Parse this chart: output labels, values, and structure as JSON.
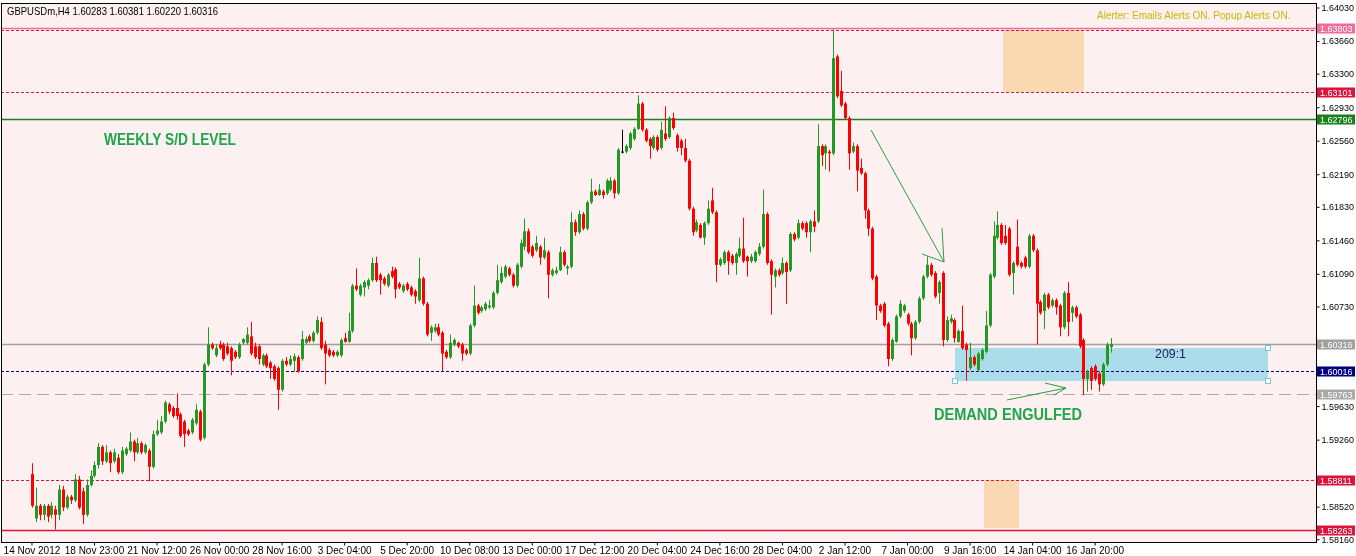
{
  "chart_data": {
    "type": "candlestick",
    "title": "GBPUSDm,H4 1.60283 1.60381 1.60220 1.60316",
    "categories": [
      "14 Nov 2012",
      null,
      null,
      null,
      null,
      null,
      null,
      null,
      null,
      null,
      null,
      null,
      null,
      null,
      null,
      null,
      "18 Nov 23:00",
      null,
      null,
      null,
      null,
      null,
      null,
      null,
      null,
      null,
      null,
      null,
      null,
      null,
      null,
      null,
      "21 Nov 12:00",
      null,
      null,
      null,
      null,
      null,
      null,
      null,
      null,
      null,
      null,
      null,
      null,
      null,
      null,
      null,
      "26 Nov 00:00",
      null,
      null,
      null,
      null,
      null,
      null,
      null,
      null,
      null,
      null,
      null,
      null,
      null,
      null,
      null,
      "28 Nov 16:00",
      null,
      null,
      null,
      null,
      null,
      null,
      null,
      null,
      null,
      null,
      null,
      null,
      null,
      null,
      null,
      "3 Dec 04:00",
      null,
      null,
      null,
      null,
      null,
      null,
      null,
      null,
      null,
      null,
      null,
      null,
      null,
      null,
      null,
      "5 Dec 20:00",
      null,
      null,
      null,
      null,
      null,
      null,
      null,
      null,
      null,
      null,
      null,
      null,
      null,
      null,
      null,
      "10 Dec 08:00",
      null,
      null,
      null,
      null,
      null,
      null,
      null,
      null,
      null,
      null,
      null,
      null,
      null,
      null,
      null,
      "13 Dec 00:00",
      null,
      null,
      null,
      null,
      null,
      null,
      null,
      null,
      null,
      null,
      null,
      null,
      null,
      null,
      null,
      "17 Dec 12:00",
      null,
      null,
      null,
      null,
      null,
      null,
      null,
      null,
      null,
      null,
      null,
      null,
      null,
      null,
      null,
      "20 Dec 04:00",
      null,
      null,
      null,
      null,
      null,
      null,
      null,
      null,
      null,
      null,
      null,
      null,
      null,
      null,
      null,
      "24 Dec 16:00",
      null,
      null,
      null,
      null,
      null,
      null,
      null,
      null,
      null,
      null,
      null,
      null,
      null,
      null,
      null,
      "28 Dec 04:00",
      null,
      null,
      null,
      null,
      null,
      null,
      null,
      null,
      null,
      null,
      null,
      null,
      null,
      null,
      null,
      "2 Jan 12:00",
      null,
      null,
      null,
      null,
      null,
      null,
      null,
      null,
      null,
      null,
      null,
      null,
      null,
      null,
      null,
      "7 Jan 00:00",
      null,
      null,
      null,
      null,
      null,
      null,
      null,
      null,
      null,
      null,
      null,
      null,
      null,
      null,
      null,
      "9 Jan 16:00",
      null,
      null,
      null,
      null,
      null,
      null,
      null,
      null,
      null,
      null,
      null,
      null,
      null,
      null,
      null,
      "14 Jan 04:00",
      null,
      null,
      null,
      null,
      null,
      null,
      null,
      null,
      null,
      null,
      null,
      null,
      null,
      null,
      null,
      "16 Jan 20:00",
      null,
      null,
      null,
      null,
      null,
      null,
      null,
      null,
      null,
      null,
      null,
      null,
      null,
      null,
      null,
      null,
      null,
      null,
      null,
      null,
      null,
      null,
      null,
      null,
      null,
      null,
      null,
      null,
      null,
      null,
      null,
      null,
      null,
      null,
      null,
      null,
      null,
      null,
      null,
      null,
      null,
      null,
      null,
      null,
      null,
      null,
      null,
      null,
      null,
      null,
      null,
      null,
      null,
      null,
      null,
      null
    ],
    "ohlc": [
      [
        1.5888,
        1.59,
        1.5851,
        1.5853
      ],
      [
        1.5839,
        1.5873,
        1.5835,
        1.5853
      ],
      [
        1.5853,
        1.5855,
        1.5837,
        1.5843
      ],
      [
        1.5843,
        1.5855,
        1.5837,
        1.5853
      ],
      [
        1.5853,
        1.5855,
        1.5835,
        1.5841
      ],
      [
        1.5843,
        1.5857,
        1.5839,
        1.5853
      ],
      [
        1.5849,
        1.5853,
        1.5827,
        1.5843
      ],
      [
        1.5843,
        1.5876,
        1.5837,
        1.5871
      ],
      [
        1.5871,
        1.5875,
        1.5847,
        1.5851
      ],
      [
        1.5851,
        1.5865,
        1.5849,
        1.5863
      ],
      [
        1.5863,
        1.5865,
        1.5855,
        1.5859
      ],
      [
        1.5859,
        1.5888,
        1.5857,
        1.5882
      ],
      [
        1.5882,
        1.5886,
        1.5849,
        1.5851
      ],
      [
        1.5869,
        1.5873,
        1.5833,
        1.5843
      ],
      [
        1.5843,
        1.5882,
        1.5841,
        1.5876
      ],
      [
        1.5876,
        1.5892,
        1.5874,
        1.5886
      ],
      [
        1.5886,
        1.5902,
        1.5884,
        1.5898
      ],
      [
        1.5898,
        1.5922,
        1.5894,
        1.5918
      ],
      [
        1.5918,
        1.592,
        1.5898,
        1.5902
      ],
      [
        1.5902,
        1.592,
        1.59,
        1.5912
      ],
      [
        1.5912,
        1.5914,
        1.589,
        1.59
      ],
      [
        1.5902,
        1.5916,
        1.59,
        1.5912
      ],
      [
        1.5906,
        1.591,
        1.5888,
        1.589
      ],
      [
        1.589,
        1.5918,
        1.5888,
        1.5914
      ],
      [
        1.591,
        1.5918,
        1.5908,
        1.5916
      ],
      [
        1.5914,
        1.5934,
        1.5912,
        1.5924
      ],
      [
        1.5924,
        1.5926,
        1.5902,
        1.5912
      ],
      [
        1.5912,
        1.5928,
        1.591,
        1.5922
      ],
      [
        1.5922,
        1.5924,
        1.591,
        1.5912
      ],
      [
        1.5912,
        1.5922,
        1.591,
        1.592
      ],
      [
        1.5914,
        1.5916,
        1.588,
        1.5896
      ],
      [
        1.5896,
        1.5936,
        1.5894,
        1.5932
      ],
      [
        1.5932,
        1.5948,
        1.593,
        1.5936
      ],
      [
        1.5934,
        1.5952,
        1.5932,
        1.5946
      ],
      [
        1.5946,
        1.5969,
        1.5944,
        1.5967
      ],
      [
        1.5965,
        1.5967,
        1.5954,
        1.5957
      ],
      [
        1.5961,
        1.5963,
        1.595,
        1.5952
      ],
      [
        1.5961,
        1.5977,
        1.5948,
        1.5952
      ],
      [
        1.5954,
        1.5956,
        1.5928,
        1.593
      ],
      [
        1.5946,
        1.5948,
        1.5918,
        1.5932
      ],
      [
        1.5936,
        1.5938,
        1.593,
        1.5932
      ],
      [
        1.5934,
        1.595,
        1.5932,
        1.5948
      ],
      [
        1.5944,
        1.5965,
        1.5942,
        1.5959
      ],
      [
        1.5957,
        1.5959,
        1.5924,
        1.5926
      ],
      [
        1.5928,
        1.6011,
        1.5926,
        1.6009
      ],
      [
        1.6009,
        1.605,
        1.6007,
        1.6031
      ],
      [
        1.6031,
        1.6033,
        1.6025,
        1.6027
      ],
      [
        1.6019,
        1.6031,
        1.6017,
        1.6027
      ],
      [
        1.6031,
        1.6035,
        1.6025,
        1.6027
      ],
      [
        1.6031,
        1.6033,
        1.6013,
        1.6015
      ],
      [
        1.6029,
        1.6033,
        1.6019,
        1.6021
      ],
      [
        1.6027,
        1.6029,
        1.5997,
        1.6013
      ],
      [
        1.6023,
        1.6025,
        1.6015,
        1.6017
      ],
      [
        1.6017,
        1.6033,
        1.6015,
        1.6031
      ],
      [
        1.6033,
        1.6038,
        1.6031,
        1.6037
      ],
      [
        1.6033,
        1.605,
        1.6031,
        1.6042
      ],
      [
        1.604,
        1.6056,
        1.6019,
        1.6021
      ],
      [
        1.6029,
        1.6033,
        1.6015,
        1.6017
      ],
      [
        1.6029,
        1.6031,
        1.6009,
        1.6015
      ],
      [
        1.6009,
        1.6021,
        1.6007,
        1.6019
      ],
      [
        1.6019,
        1.6021,
        1.6005,
        1.6007
      ],
      [
        1.6011,
        1.6013,
        1.5993,
        1.6005
      ],
      [
        1.6007,
        1.6009,
        1.5991,
        1.5993
      ],
      [
        1.6005,
        1.6007,
        1.5959,
        1.5981
      ],
      [
        1.5981,
        1.6015,
        1.5979,
        1.6013
      ],
      [
        1.6013,
        1.6017,
        1.6007,
        1.6009
      ],
      [
        1.6009,
        1.6019,
        1.6007,
        1.6015
      ],
      [
        1.6013,
        1.6021,
        1.6001,
        1.6018
      ],
      [
        1.6017,
        1.6019,
        1.6,
        1.6001
      ],
      [
        1.6015,
        1.6046,
        1.6013,
        1.6037
      ],
      [
        1.6033,
        1.604,
        1.6031,
        1.6037
      ],
      [
        1.604,
        1.6042,
        1.6033,
        1.6035
      ],
      [
        1.6035,
        1.6046,
        1.6033,
        1.6044
      ],
      [
        1.6044,
        1.6062,
        1.6042,
        1.6058
      ],
      [
        1.6056,
        1.6061,
        1.6025,
        1.6027
      ],
      [
        1.6031,
        1.6035,
        1.5987,
        1.6021
      ],
      [
        1.6025,
        1.6027,
        1.6017,
        1.6019
      ],
      [
        1.6023,
        1.6025,
        1.6017,
        1.6019
      ],
      [
        1.6019,
        1.6025,
        1.6017,
        1.6023
      ],
      [
        1.6019,
        1.6038,
        1.6017,
        1.6036
      ],
      [
        1.6038,
        1.6044,
        1.6033,
        1.6034
      ],
      [
        1.6034,
        1.6066,
        1.6033,
        1.6046
      ],
      [
        1.6046,
        1.6098,
        1.6044,
        1.6096
      ],
      [
        1.6096,
        1.6115,
        1.609,
        1.6092
      ],
      [
        1.6086,
        1.6098,
        1.6084,
        1.6096
      ],
      [
        1.6094,
        1.6102,
        1.6084,
        1.61
      ],
      [
        1.6096,
        1.6104,
        1.6092,
        1.6102
      ],
      [
        1.6102,
        1.6127,
        1.61,
        1.6121
      ],
      [
        1.6121,
        1.6128,
        1.61,
        1.6102
      ],
      [
        1.6108,
        1.611,
        1.6086,
        1.6102
      ],
      [
        1.6104,
        1.6106,
        1.6096,
        1.6098
      ],
      [
        1.6096,
        1.611,
        1.6094,
        1.6108
      ],
      [
        1.6112,
        1.6117,
        1.6104,
        1.6106
      ],
      [
        1.6114,
        1.6116,
        1.6082,
        1.6092
      ],
      [
        1.6098,
        1.61,
        1.6092,
        1.6094
      ],
      [
        1.609,
        1.6098,
        1.6088,
        1.6096
      ],
      [
        1.6098,
        1.61,
        1.609,
        1.6092
      ],
      [
        1.6094,
        1.6096,
        1.6084,
        1.6086
      ],
      [
        1.609,
        1.6092,
        1.6076,
        1.6084
      ],
      [
        1.608,
        1.6127,
        1.6078,
        1.6104
      ],
      [
        1.6104,
        1.6106,
        1.6074,
        1.6076
      ],
      [
        1.6076,
        1.6078,
        1.604,
        1.6042
      ],
      [
        1.6044,
        1.6052,
        1.6035,
        1.605
      ],
      [
        1.6046,
        1.6054,
        1.6044,
        1.605
      ],
      [
        1.605,
        1.6054,
        1.604,
        1.6042
      ],
      [
        1.6044,
        1.6046,
        1.6001,
        1.6021
      ],
      [
        1.6023,
        1.6025,
        1.6015,
        1.6017
      ],
      [
        1.6017,
        1.6042,
        1.6015,
        1.6033
      ],
      [
        1.6031,
        1.6038,
        1.6029,
        1.6036
      ],
      [
        1.6033,
        1.6034,
        1.6027,
        1.6029
      ],
      [
        1.6031,
        1.6033,
        1.6013,
        1.6021
      ],
      [
        1.6025,
        1.6027,
        1.6019,
        1.6021
      ],
      [
        1.6021,
        1.6054,
        1.6019,
        1.6052
      ],
      [
        1.6052,
        1.6096,
        1.605,
        1.6074
      ],
      [
        1.6074,
        1.6076,
        1.6064,
        1.6066
      ],
      [
        1.6068,
        1.6074,
        1.6066,
        1.6072
      ],
      [
        1.607,
        1.6078,
        1.6068,
        1.6076
      ],
      [
        1.6072,
        1.608,
        1.607,
        1.6074
      ],
      [
        1.6072,
        1.609,
        1.607,
        1.6088
      ],
      [
        1.6088,
        1.6119,
        1.6086,
        1.6102
      ],
      [
        1.61,
        1.6117,
        1.6098,
        1.611
      ],
      [
        1.6106,
        1.6119,
        1.6104,
        1.6117
      ],
      [
        1.6115,
        1.6117,
        1.6106,
        1.6108
      ],
      [
        1.6108,
        1.611,
        1.6094,
        1.6096
      ],
      [
        1.6096,
        1.6121,
        1.6094,
        1.6119
      ],
      [
        1.6117,
        1.6147,
        1.6115,
        1.6143
      ],
      [
        1.6139,
        1.617,
        1.6135,
        1.6156
      ],
      [
        1.6156,
        1.6159,
        1.6131,
        1.6133
      ],
      [
        1.6139,
        1.6141,
        1.6127,
        1.6129
      ],
      [
        1.6135,
        1.6151,
        1.6133,
        1.6143
      ],
      [
        1.6139,
        1.6141,
        1.6119,
        1.6127
      ],
      [
        1.6127,
        1.6149,
        1.6125,
        1.6135
      ],
      [
        1.6133,
        1.6135,
        1.6082,
        1.6108
      ],
      [
        1.6108,
        1.6115,
        1.6106,
        1.6113
      ],
      [
        1.611,
        1.6117,
        1.6108,
        1.6113
      ],
      [
        1.6113,
        1.6139,
        1.6112,
        1.6133
      ],
      [
        1.6133,
        1.6135,
        1.6117,
        1.6119
      ],
      [
        1.6115,
        1.6119,
        1.6108,
        1.6117
      ],
      [
        1.6117,
        1.6177,
        1.6115,
        1.6166
      ],
      [
        1.6166,
        1.6169,
        1.6151,
        1.6155
      ],
      [
        1.6155,
        1.6179,
        1.6153,
        1.6175
      ],
      [
        1.6175,
        1.6177,
        1.6157,
        1.6159
      ],
      [
        1.6159,
        1.619,
        1.6157,
        1.6188
      ],
      [
        1.6188,
        1.6214,
        1.6186,
        1.62
      ],
      [
        1.62,
        1.6202,
        1.6195,
        1.6196
      ],
      [
        1.6196,
        1.6208,
        1.6195,
        1.6202
      ],
      [
        1.62,
        1.6202,
        1.6192,
        1.6196
      ],
      [
        1.6198,
        1.6214,
        1.6196,
        1.6212
      ],
      [
        1.6202,
        1.6216,
        1.62,
        1.6212
      ],
      [
        1.6212,
        1.6214,
        1.6192,
        1.6198
      ],
      [
        1.6198,
        1.6248,
        1.6196,
        1.6246
      ],
      [
        1.6244,
        1.6268,
        1.6242,
        1.6244
      ],
      [
        1.6244,
        1.6252,
        1.6242,
        1.625
      ],
      [
        1.6248,
        1.6266,
        1.6246,
        1.6264
      ],
      [
        1.6258,
        1.6271,
        1.6256,
        1.6269
      ],
      [
        1.6269,
        1.6306,
        1.6268,
        1.6297
      ],
      [
        1.6297,
        1.6299,
        1.6266,
        1.6268
      ],
      [
        1.6268,
        1.627,
        1.6254,
        1.6256
      ],
      [
        1.6258,
        1.626,
        1.6236,
        1.625
      ],
      [
        1.6248,
        1.6262,
        1.6246,
        1.626
      ],
      [
        1.626,
        1.6262,
        1.6244,
        1.6246
      ],
      [
        1.6248,
        1.6277,
        1.6246,
        1.6268
      ],
      [
        1.6264,
        1.6294,
        1.6256,
        1.6258
      ],
      [
        1.626,
        1.6283,
        1.6258,
        1.6281
      ],
      [
        1.6281,
        1.6287,
        1.6268,
        1.627
      ],
      [
        1.6262,
        1.6264,
        1.6244,
        1.6248
      ],
      [
        1.6256,
        1.6258,
        1.624,
        1.6248
      ],
      [
        1.6248,
        1.6258,
        1.6232,
        1.6234
      ],
      [
        1.6234,
        1.6236,
        1.6179,
        1.6181
      ],
      [
        1.6181,
        1.6183,
        1.6151,
        1.6155
      ],
      [
        1.6157,
        1.6169,
        1.6155,
        1.6166
      ],
      [
        1.6163,
        1.6165,
        1.6148,
        1.6149
      ],
      [
        1.6149,
        1.6167,
        1.6141,
        1.6165
      ],
      [
        1.6165,
        1.619,
        1.6163,
        1.6181
      ],
      [
        1.619,
        1.6204,
        1.6175,
        1.6177
      ],
      [
        1.6177,
        1.6179,
        1.61,
        1.6119
      ],
      [
        1.6119,
        1.6127,
        1.6117,
        1.6125
      ],
      [
        1.6121,
        1.6135,
        1.6119,
        1.6133
      ],
      [
        1.6133,
        1.6135,
        1.6108,
        1.6123
      ],
      [
        1.6129,
        1.6131,
        1.6119,
        1.6121
      ],
      [
        1.6121,
        1.6133,
        1.6108,
        1.6131
      ],
      [
        1.6129,
        1.6149,
        1.6127,
        1.6137
      ],
      [
        1.6137,
        1.6171,
        1.6121,
        1.6123
      ],
      [
        1.6128,
        1.6129,
        1.6106,
        1.6123
      ],
      [
        1.6123,
        1.6131,
        1.6121,
        1.6128
      ],
      [
        1.6123,
        1.6135,
        1.6121,
        1.6133
      ],
      [
        1.6131,
        1.6143,
        1.6129,
        1.6139
      ],
      [
        1.6139,
        1.6202,
        1.6137,
        1.6175
      ],
      [
        1.6175,
        1.6177,
        1.6119,
        1.6121
      ],
      [
        1.6123,
        1.6125,
        1.6064,
        1.6108
      ],
      [
        1.6106,
        1.6115,
        1.6094,
        1.6113
      ],
      [
        1.6113,
        1.6115,
        1.6106,
        1.6108
      ],
      [
        1.611,
        1.6127,
        1.6108,
        1.6121
      ],
      [
        1.6121,
        1.6123,
        1.6076,
        1.6111
      ],
      [
        1.6113,
        1.6155,
        1.6111,
        1.6153
      ],
      [
        1.6153,
        1.6155,
        1.6145,
        1.6147
      ],
      [
        1.6149,
        1.6169,
        1.6147,
        1.6165
      ],
      [
        1.6165,
        1.6167,
        1.6157,
        1.6159
      ],
      [
        1.6165,
        1.6167,
        1.6149,
        1.6155
      ],
      [
        1.6155,
        1.6169,
        1.6133,
        1.6167
      ],
      [
        1.6167,
        1.6179,
        1.6155,
        1.6161
      ],
      [
        1.6167,
        1.6274,
        1.6165,
        1.625
      ],
      [
        1.625,
        1.6252,
        1.6228,
        1.624
      ],
      [
        1.6242,
        1.6252,
        1.6224,
        1.625
      ],
      [
        1.6244,
        1.6246,
        1.6222,
        1.6242
      ],
      [
        1.6242,
        1.6379,
        1.624,
        1.6347
      ],
      [
        1.6349,
        1.6351,
        1.6303,
        1.6305
      ],
      [
        1.6311,
        1.6333,
        1.6293,
        1.6295
      ],
      [
        1.6297,
        1.6299,
        1.6279,
        1.6281
      ],
      [
        1.6281,
        1.6283,
        1.6224,
        1.6242
      ],
      [
        1.6244,
        1.6254,
        1.6242,
        1.625
      ],
      [
        1.625,
        1.6252,
        1.62,
        1.6223
      ],
      [
        1.6226,
        1.6236,
        1.6218,
        1.622
      ],
      [
        1.622,
        1.6222,
        1.617,
        1.6179
      ],
      [
        1.6179,
        1.6181,
        1.6151,
        1.6159
      ],
      [
        1.6159,
        1.6161,
        1.6102,
        1.6104
      ],
      [
        1.6106,
        1.6108,
        1.6058,
        1.6074
      ],
      [
        1.6074,
        1.6076,
        1.6066,
        1.6068
      ],
      [
        1.6076,
        1.6078,
        1.605,
        1.6052
      ],
      [
        1.6054,
        1.6056,
        1.6007,
        1.6015
      ],
      [
        1.6015,
        1.6038,
        1.6013,
        1.6036
      ],
      [
        1.6034,
        1.6064,
        1.6033,
        1.6062
      ],
      [
        1.6062,
        1.608,
        1.606,
        1.6076
      ],
      [
        1.6068,
        1.6076,
        1.6066,
        1.6074
      ],
      [
        1.6064,
        1.6066,
        1.6052,
        1.6054
      ],
      [
        1.6054,
        1.6056,
        1.6019,
        1.6038
      ],
      [
        1.6038,
        1.6058,
        1.6036,
        1.6056
      ],
      [
        1.6056,
        1.6084,
        1.6054,
        1.6082
      ],
      [
        1.6082,
        1.6108,
        1.608,
        1.6106
      ],
      [
        1.6106,
        1.6128,
        1.6104,
        1.6119
      ],
      [
        1.6119,
        1.6121,
        1.6106,
        1.6108
      ],
      [
        1.611,
        1.6112,
        1.6082,
        1.6084
      ],
      [
        1.6088,
        1.6102,
        1.6076,
        1.61
      ],
      [
        1.611,
        1.6112,
        1.6029,
        1.6036
      ],
      [
        1.6036,
        1.6062,
        1.6034,
        1.6058
      ],
      [
        1.6056,
        1.6064,
        1.6054,
        1.606
      ],
      [
        1.6058,
        1.606,
        1.6033,
        1.6038
      ],
      [
        1.6034,
        1.6048,
        1.6033,
        1.6046
      ],
      [
        1.6046,
        1.6074,
        1.6025,
        1.6027
      ],
      [
        1.6031,
        1.6033,
        1.5991,
        1.6025
      ],
      [
        1.6005,
        1.6033,
        1.6003,
        1.6017
      ],
      [
        1.6017,
        1.6019,
        1.6007,
        1.6009
      ],
      [
        1.6003,
        1.6023,
        1.6001,
        1.6021
      ],
      [
        1.6015,
        1.6027,
        1.6013,
        1.6025
      ],
      [
        1.6023,
        1.6068,
        1.6021,
        1.6052
      ],
      [
        1.6052,
        1.611,
        1.605,
        1.6108
      ],
      [
        1.6106,
        1.6167,
        1.6104,
        1.6151
      ],
      [
        1.6149,
        1.6178,
        1.6147,
        1.6163
      ],
      [
        1.6163,
        1.6165,
        1.6141,
        1.6143
      ],
      [
        1.6151,
        1.6163,
        1.6141,
        1.6143
      ],
      [
        1.6159,
        1.6161,
        1.6106,
        1.6108
      ],
      [
        1.611,
        1.6123,
        1.6086,
        1.6121
      ],
      [
        1.6139,
        1.6169,
        1.6117,
        1.6119
      ],
      [
        1.6121,
        1.6123,
        1.6115,
        1.6117
      ],
      [
        1.6127,
        1.6129,
        1.6115,
        1.6117
      ],
      [
        1.6117,
        1.6153,
        1.6115,
        1.6151
      ],
      [
        1.6151,
        1.6153,
        1.6133,
        1.6135
      ],
      [
        1.6135,
        1.6137,
        1.6031,
        1.6076
      ],
      [
        1.6078,
        1.608,
        1.6064,
        1.6066
      ],
      [
        1.6068,
        1.6088,
        1.6048,
        1.6086
      ],
      [
        1.6086,
        1.6088,
        1.607,
        1.6072
      ],
      [
        1.6074,
        1.6082,
        1.6072,
        1.608
      ],
      [
        1.608,
        1.6082,
        1.6064,
        1.6072
      ],
      [
        1.6074,
        1.6076,
        1.604,
        1.605
      ],
      [
        1.605,
        1.609,
        1.6048,
        1.6088
      ],
      [
        1.6088,
        1.61,
        1.604,
        1.6056
      ],
      [
        1.6066,
        1.6074,
        1.6056,
        1.6072
      ],
      [
        1.6072,
        1.6074,
        1.606,
        1.6062
      ],
      [
        1.6064,
        1.6066,
        1.6027,
        1.6029
      ],
      [
        1.6036,
        1.6038,
        1.5975,
        1.5993
      ],
      [
        1.5993,
        1.6003,
        1.5979,
        1.6001
      ],
      [
        1.6005,
        1.6007,
        1.5981,
        1.5991
      ],
      [
        1.6007,
        1.6009,
        1.5991,
        1.5993
      ],
      [
        1.5999,
        1.6001,
        1.5979,
        1.5987
      ],
      [
        1.5987,
        1.6011,
        1.5985,
        1.6009
      ],
      [
        1.6009,
        1.6033,
        1.6007,
        1.6031
      ],
      [
        1.60283,
        1.60381,
        1.6022,
        1.60316
      ],
      null,
      null,
      null,
      null,
      null,
      null,
      null,
      null,
      null,
      null,
      null,
      null,
      null,
      null,
      null,
      null,
      null,
      null,
      null,
      null,
      null,
      null,
      null,
      null,
      null,
      null,
      null,
      null,
      null,
      null,
      null,
      null,
      null,
      null,
      null,
      null,
      null,
      null,
      null,
      null,
      null,
      null,
      null,
      null,
      null,
      null,
      null,
      null,
      null,
      null,
      null,
      null
    ],
    "colors": [
      "#ff0000",
      "#229922",
      "#ff0000",
      "#229922",
      "#ff0000",
      "#229922",
      "#ff0000",
      "#229922",
      "#ff0000",
      "#229922",
      "#ff0000",
      "#229922",
      "#ff0000",
      "#ff0000",
      "#229922",
      "#229922",
      "#229922",
      "#229922",
      "#ff0000",
      "#229922",
      "#ff0000",
      "#229922",
      "#ff0000",
      "#229922",
      "#229922",
      "#229922",
      "#ff0000",
      "#229922",
      "#ff0000",
      "#229922",
      "#ff0000",
      "#229922",
      "#229922",
      "#229922",
      "#229922",
      "#ff0000",
      "#ff0000",
      "#ff0000",
      "#ff0000",
      "#ff0000",
      "#ff0000",
      "#229922",
      "#229922",
      "#ff0000",
      "#229922",
      "#229922",
      "#ff0000",
      "#229922",
      "#ff0000",
      "#ff0000",
      "#ff0000",
      "#ff0000",
      "#ff0000",
      "#229922",
      "#229922",
      "#229922",
      "#ff0000",
      "#ff0000",
      "#ff0000",
      "#229922",
      "#ff0000",
      "#ff0000",
      "#ff0000",
      "#ff0000",
      "#229922",
      "#ff0000",
      "#229922",
      "#229922",
      "#ff0000",
      "#229922",
      "#229922",
      "#ff0000",
      "#229922",
      "#229922",
      "#ff0000",
      "#ff0000",
      "#ff0000",
      "#ff0000",
      "#229922",
      "#229922",
      "#ff0000",
      "#229922",
      "#229922",
      "#ff0000",
      "#229922",
      "#229922",
      "#229922",
      "#229922",
      "#ff0000",
      "#ff0000",
      "#ff0000",
      "#229922",
      "#ff0000",
      "#ff0000",
      "#ff0000",
      "#229922",
      "#ff0000",
      "#ff0000",
      "#ff0000",
      "#229922",
      "#ff0000",
      "#ff0000",
      "#229922",
      "#229922",
      "#ff0000",
      "#ff0000",
      "#ff0000",
      "#229922",
      "#229922",
      "#ff0000",
      "#ff0000",
      "#ff0000",
      "#229922",
      "#229922",
      "#ff0000",
      "#229922",
      "#229922",
      "#229922",
      "#229922",
      "#229922",
      "#229922",
      "#229922",
      "#ff0000",
      "#ff0000",
      "#229922",
      "#229922",
      "#229922",
      "#ff0000",
      "#ff0000",
      "#229922",
      "#ff0000",
      "#229922",
      "#ff0000",
      "#229922",
      "#229922",
      "#229922",
      "#ff0000",
      "#229922",
      "#229922",
      "#ff0000",
      "#229922",
      "#ff0000",
      "#229922",
      "#229922",
      "#ff0000",
      "#229922",
      "#ff0000",
      "#229922",
      "#229922",
      "#ff0000",
      "#229922",
      "#000000",
      "#229922",
      "#229922",
      "#229922",
      "#229922",
      "#ff0000",
      "#ff0000",
      "#ff0000",
      "#229922",
      "#ff0000",
      "#229922",
      "#ff0000",
      "#229922",
      "#ff0000",
      "#ff0000",
      "#ff0000",
      "#ff0000",
      "#ff0000",
      "#ff0000",
      "#229922",
      "#ff0000",
      "#229922",
      "#229922",
      "#ff0000",
      "#ff0000",
      "#229922",
      "#229922",
      "#ff0000",
      "#ff0000",
      "#229922",
      "#229922",
      "#ff0000",
      "#ff0000",
      "#229922",
      "#229922",
      "#229922",
      "#229922",
      "#ff0000",
      "#ff0000",
      "#229922",
      "#ff0000",
      "#229922",
      "#ff0000",
      "#229922",
      "#ff0000",
      "#229922",
      "#ff0000",
      "#ff0000",
      "#229922",
      "#ff0000",
      "#229922",
      "#ff0000",
      "#229922",
      "#ff0000",
      "#229922",
      "#ff0000",
      "#ff0000",
      "#ff0000",
      "#ff0000",
      "#229922",
      "#ff0000",
      "#ff0000",
      "#ff0000",
      "#ff0000",
      "#ff0000",
      "#ff0000",
      "#ff0000",
      "#ff0000",
      "#ff0000",
      "#229922",
      "#229922",
      "#229922",
      "#229922",
      "#ff0000",
      "#ff0000",
      "#229922",
      "#229922",
      "#229922",
      "#229922",
      "#ff0000",
      "#ff0000",
      "#229922",
      "#ff0000",
      "#229922",
      "#229922",
      "#ff0000",
      "#229922",
      "#ff0000",
      "#ff0000",
      "#229922",
      "#ff0000",
      "#229922",
      "#229922",
      "#229922",
      "#229922",
      "#229922",
      "#229922",
      "#ff0000",
      "#ff0000",
      "#ff0000",
      "#229922",
      "#ff0000",
      "#ff0000",
      "#ff0000",
      "#229922",
      "#ff0000",
      "#ff0000",
      "#ff0000",
      "#229922",
      "#ff0000",
      "#229922",
      "#ff0000",
      "#ff0000",
      "#229922",
      "#ff0000",
      "#229922",
      "#ff0000",
      "#ff0000",
      "#ff0000",
      "#229922",
      "#ff0000",
      "#ff0000",
      "#ff0000",
      "#229922",
      "#229922",
      "#229922",
      null,
      null,
      null,
      null,
      null,
      null,
      null,
      null,
      null,
      null,
      null,
      null,
      null,
      null,
      null,
      null,
      null,
      null,
      null,
      null,
      null,
      null,
      null,
      null,
      null,
      null,
      null,
      null,
      null,
      null,
      null,
      null,
      null,
      null,
      null,
      null,
      null,
      null,
      null,
      null,
      null,
      null,
      null,
      null,
      null,
      null,
      null,
      null,
      null,
      null,
      null,
      null
    ],
    "ylim": [
      1.5813,
      1.6408
    ],
    "yticks": [
      {
        "value": 1.6403,
        "label": "1.64030"
      },
      {
        "value": 1.6366,
        "label": "1.63660"
      },
      {
        "value": 1.633,
        "label": "1.63300"
      },
      {
        "value": 1.6293,
        "label": "1.62930"
      },
      {
        "value": 1.6256,
        "label": "1.62560"
      },
      {
        "value": 1.6219,
        "label": "1.62190"
      },
      {
        "value": 1.6183,
        "label": "1.61830"
      },
      {
        "value": 1.6146,
        "label": "1.61460"
      },
      {
        "value": 1.6109,
        "label": "1.61090"
      },
      {
        "value": 1.6073,
        "label": "1.60730"
      },
      {
        "value": 1.5963,
        "label": "1.59630"
      },
      {
        "value": 1.5926,
        "label": "1.59260"
      },
      {
        "value": 1.5852,
        "label": "1.58520"
      },
      {
        "value": 1.5816,
        "label": "1.58160"
      }
    ],
    "ref_lines": [
      {
        "axis": "y",
        "value": 1.63803,
        "label": "1.63803",
        "color": "#f06c9b",
        "line_style": "solid"
      },
      {
        "axis": "y",
        "value": 1.6378,
        "color": "#dc143c",
        "line_style": "dotted"
      },
      {
        "axis": "y",
        "value": 1.63101,
        "label": "1.63101",
        "color": "#dc143c",
        "line_style": "dotted"
      },
      {
        "axis": "y",
        "value": 1.62796,
        "label": "1.62796",
        "color": "#1a801a",
        "line_style": "solid"
      },
      {
        "axis": "y",
        "value": 1.60316,
        "label": "1.60316",
        "color": "#a0a0a0",
        "line_style": "solid"
      },
      {
        "axis": "y",
        "value": 1.60016,
        "label": "1.60016",
        "color": "#000080",
        "line_style": "dotted"
      },
      {
        "axis": "y",
        "value": 1.59763,
        "label": "1.59763",
        "color": "#a9a9a9",
        "line_style": "dashed"
      },
      {
        "axis": "y",
        "value": 1.58811,
        "label": "1.58811",
        "color": "#dc143c",
        "line_style": "dotted"
      },
      {
        "axis": "y",
        "value": 1.58263,
        "label": "1.58263",
        "color": "#dc143c",
        "line_style": "solid"
      }
    ],
    "annotations": [
      "WEEKLY S/D LEVEL",
      "DEMAND ENGULFED",
      "209:1",
      "Alerter: Emails Alerts ON. Popup Alerts ON."
    ]
  }
}
